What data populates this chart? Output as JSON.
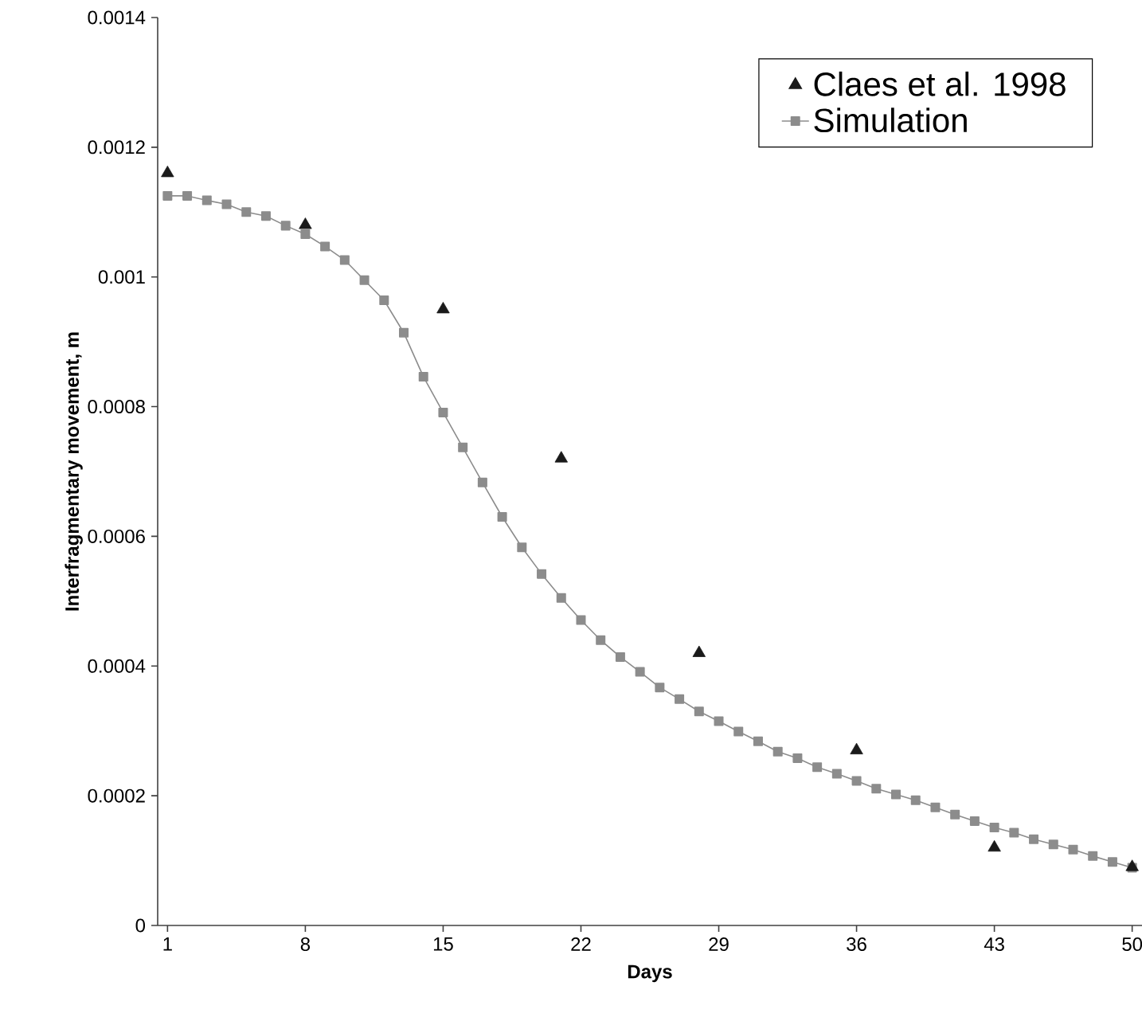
{
  "chart_data": {
    "type": "line",
    "xlabel": "Days",
    "ylabel": "Interfragmentary movement, m",
    "x": [
      1,
      2,
      3,
      4,
      5,
      6,
      7,
      8,
      9,
      10,
      11,
      12,
      13,
      14,
      15,
      16,
      17,
      18,
      19,
      20,
      21,
      22,
      23,
      24,
      25,
      26,
      27,
      28,
      29,
      30,
      31,
      32,
      33,
      34,
      35,
      36,
      37,
      38,
      39,
      40,
      41,
      42,
      43,
      44,
      45,
      46,
      47,
      48,
      49,
      50
    ],
    "series": [
      {
        "name": "Claes et al. 1998",
        "type": "scatter",
        "marker": "triangle",
        "color": "#1a1a1a",
        "x": [
          1,
          8,
          15,
          21,
          28,
          36,
          43,
          50
        ],
        "values": [
          0.00116,
          0.00108,
          0.00095,
          0.00072,
          0.00042,
          0.00027,
          0.00012,
          9e-05
        ]
      },
      {
        "name": "Simulation",
        "marker": "square",
        "color": "#8c8c8c",
        "values": [
          0.001125,
          0.001125,
          0.001118,
          0.001112,
          0.0011,
          0.001094,
          0.001079,
          0.001066,
          0.001047,
          0.001026,
          0.000995,
          0.000964,
          0.000914,
          0.000846,
          0.000791,
          0.000737,
          0.000683,
          0.00063,
          0.000583,
          0.000542,
          0.000505,
          0.000471,
          0.00044,
          0.000414,
          0.000391,
          0.000367,
          0.000349,
          0.00033,
          0.000315,
          0.000299,
          0.000284,
          0.000268,
          0.000258,
          0.000244,
          0.000234,
          0.000223,
          0.000211,
          0.000202,
          0.000193,
          0.000182,
          0.000171,
          0.000161,
          0.000151,
          0.000143,
          0.000133,
          0.000125,
          0.000117,
          0.000107,
          9.8e-05,
          8.9e-05
        ]
      }
    ],
    "xlim": [
      0.5,
      50.5
    ],
    "xticks": [
      1,
      8,
      15,
      22,
      29,
      36,
      43,
      50
    ],
    "ylim": [
      0,
      0.0014
    ],
    "yticks": [
      0,
      0.0002,
      0.0004,
      0.0006,
      0.0008,
      0.001,
      0.0012,
      0.0014
    ],
    "legend": "top right"
  }
}
